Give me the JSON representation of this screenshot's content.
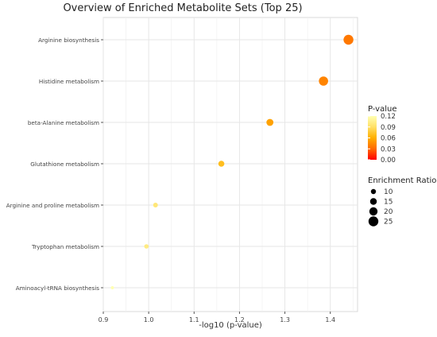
{
  "chart_data": {
    "type": "scatter",
    "title": "Overview of Enriched Metabolite Sets (Top 25)",
    "xlabel": "-log10 (p-value)",
    "ylabel": "",
    "xlim": [
      0.9,
      1.46
    ],
    "xticks": [
      "0.9",
      "1.0",
      "1.1",
      "1.2",
      "1.3",
      "1.4"
    ],
    "xtick_values": [
      0.9,
      1.0,
      1.1,
      1.2,
      1.3,
      1.4
    ],
    "grid": true,
    "points": [
      {
        "pathway": "Arginine biosynthesis",
        "x": 1.44,
        "p_value": 0.036,
        "enrichment_ratio": 25
      },
      {
        "pathway": "Histidine metabolism",
        "x": 1.385,
        "p_value": 0.041,
        "enrichment_ratio": 23
      },
      {
        "pathway": "beta-Alanine metabolism",
        "x": 1.267,
        "p_value": 0.054,
        "enrichment_ratio": 16
      },
      {
        "pathway": "Glutathione metabolism",
        "x": 1.16,
        "p_value": 0.069,
        "enrichment_ratio": 13
      },
      {
        "pathway": "Arginine and proline metabolism",
        "x": 1.015,
        "p_value": 0.097,
        "enrichment_ratio": 9
      },
      {
        "pathway": "Tryptophan metabolism",
        "x": 0.995,
        "p_value": 0.101,
        "enrichment_ratio": 8
      },
      {
        "pathway": "Aminoacyl-tRNA biosynthesis",
        "x": 0.92,
        "p_value": 0.12,
        "enrichment_ratio": 4
      }
    ],
    "color_legend": {
      "title": "P-value",
      "ticks": [
        "0.12",
        "0.09",
        "0.06",
        "0.03",
        "0.00"
      ],
      "tick_values": [
        0.12,
        0.09,
        0.06,
        0.03,
        0.0
      ],
      "range": [
        0.0,
        0.12
      ],
      "colors": [
        "#ff0000",
        "#ff6a00",
        "#ffb000",
        "#ffe066",
        "#ffffb2"
      ]
    },
    "size_legend": {
      "title": "Enrichment Ratio",
      "values": [
        10,
        15,
        20,
        25
      ],
      "labels": [
        "10",
        "15",
        "20",
        "25"
      ]
    },
    "legend_position": "right"
  }
}
